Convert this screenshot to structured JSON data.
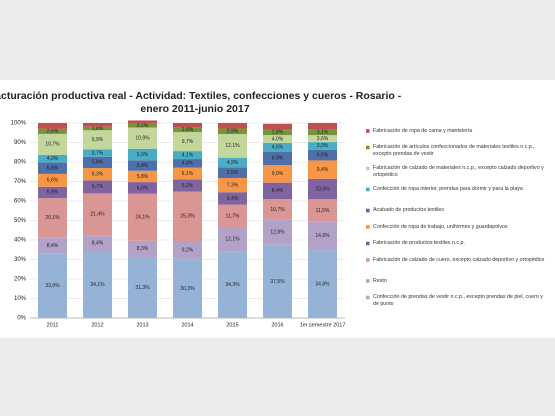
{
  "chart_data": {
    "type": "stacked-bar-100",
    "title": [
      "Facturación productiva real - Actividad: Textiles, confecciones y cueros - Rosario -",
      "enero 2011-junio 2017"
    ],
    "categories": [
      "2011",
      "2012",
      "2013",
      "2014",
      "2015",
      "2016",
      "1er semestre 2017"
    ],
    "ylim": [
      0,
      100
    ],
    "yticks": [
      {
        "value": 0,
        "label": "0%"
      },
      {
        "value": 10,
        "label": "10%"
      },
      {
        "value": 20,
        "label": "20%"
      },
      {
        "value": 30,
        "label": "30%"
      },
      {
        "value": 40,
        "label": "40%"
      },
      {
        "value": 50,
        "label": "50%"
      },
      {
        "value": 60,
        "label": "60%"
      },
      {
        "value": 70,
        "label": "70%"
      },
      {
        "value": 80,
        "label": "80%"
      },
      {
        "value": 90,
        "label": "90%"
      },
      {
        "value": 100,
        "label": "100%"
      }
    ],
    "grid": true,
    "series": [
      {
        "name": "Confección de prendas de vestir n.c.p., excepto prendas de piel, cuero y de punto",
        "color": "#95b3d7",
        "values": [
          33.0,
          34.1,
          31.3,
          30.3,
          34.3,
          37.5,
          34.8
        ],
        "value_labels": [
          "33,0%",
          "34,1%",
          "31,3%",
          "30,3%",
          "34,3%",
          "37,5%",
          "34,8%"
        ]
      },
      {
        "name": "Resto",
        "color": "#b3a2c7",
        "values": [
          8.4,
          8.4,
          8.3,
          9.2,
          12.1,
          12.8,
          14.6
        ],
        "value_labels": [
          "8,4%",
          "8,4%",
          "8,3%",
          "9,2%",
          "12,1%",
          "12,8%",
          "14,6%"
        ]
      },
      {
        "name": "Fabricación de calzado de cuero, excepto calzado deportivo y ortopédico",
        "color": "#d99694",
        "values": [
          20.1,
          21.4,
          24.1,
          25.3,
          11.7,
          10.7,
          11.5
        ],
        "value_labels": [
          "20,1%",
          "21,4%",
          "24,1%",
          "25,3%",
          "11,7%",
          "10,7%",
          "11,5%"
        ]
      },
      {
        "name": "Fabricación de productos textiles n.c.p.",
        "color": "#8064a2",
        "values": [
          5.8,
          6.7,
          6.0,
          6.2,
          6.4,
          8.4,
          10.5
        ],
        "value_labels": [
          "5,8%",
          "6,7%",
          "6,0%",
          "6,2%",
          "6,4%",
          "8,4%",
          "10,5%"
        ]
      },
      {
        "name": "Confección de ropa de trabajo, uniformes y guardapolvos",
        "color": "#f79646",
        "values": [
          6.6,
          6.3,
          5.8,
          6.1,
          7.3,
          9.0,
          9.4
        ],
        "value_labels": [
          "6,6%",
          "6,3%",
          "5,8%",
          "6,1%",
          "7,3%",
          "9,0%",
          "9,4%"
        ]
      },
      {
        "name": "Acabado de productos textiles",
        "color": "#4f6fa8",
        "values": [
          5.8,
          5.8,
          5.4,
          4.4,
          5.5,
          6.9,
          5.5
        ],
        "value_labels": [
          "5,8%",
          "5,8%",
          "5,4%",
          "4,4%",
          "5,5%",
          "6,9%",
          "5,5%"
        ]
      },
      {
        "name": "Confección de ropa interior, prendas para dormir y para la playa",
        "color": "#4bacc6",
        "values": [
          4.0,
          3.7,
          5.9,
          4.1,
          4.9,
          4.5,
          3.9
        ],
        "value_labels": [
          "4,0%",
          "3,7%",
          "5,9%",
          "4,1%",
          "4,9%",
          "4,5%",
          "3,9%"
        ]
      },
      {
        "name": "Fabricación de calzado de materiales n.c.p., excepto calzado deportivo y ortopédico",
        "color": "#c3d69b",
        "values": [
          10.7,
          9.9,
          10.9,
          9.7,
          12.1,
          4.0,
          3.6
        ],
        "value_labels": [
          "10,7%",
          "9,9%",
          "10,9%",
          "9,7%",
          "12,1%",
          "4,0%",
          "3,6%"
        ]
      },
      {
        "name": "Fabricación de artículos confeccionados de materiales textiles n.c.p., excepto prendas de vestir",
        "color": "#77933c",
        "values": [
          2.6,
          1.8,
          2.1,
          2.6,
          2.9,
          2.8,
          3.1
        ],
        "value_labels": [
          "2,6%",
          "1,8%",
          "2,1%",
          "2,6%",
          "2,9%",
          "2,8%",
          "3,1%"
        ]
      },
      {
        "name": "Fabricación de ropa de cama y mantelería",
        "color": "#c0504d",
        "values": [
          3.0,
          1.9,
          1.5,
          2.1,
          2.8,
          3.0,
          3.1
        ]
      }
    ]
  }
}
